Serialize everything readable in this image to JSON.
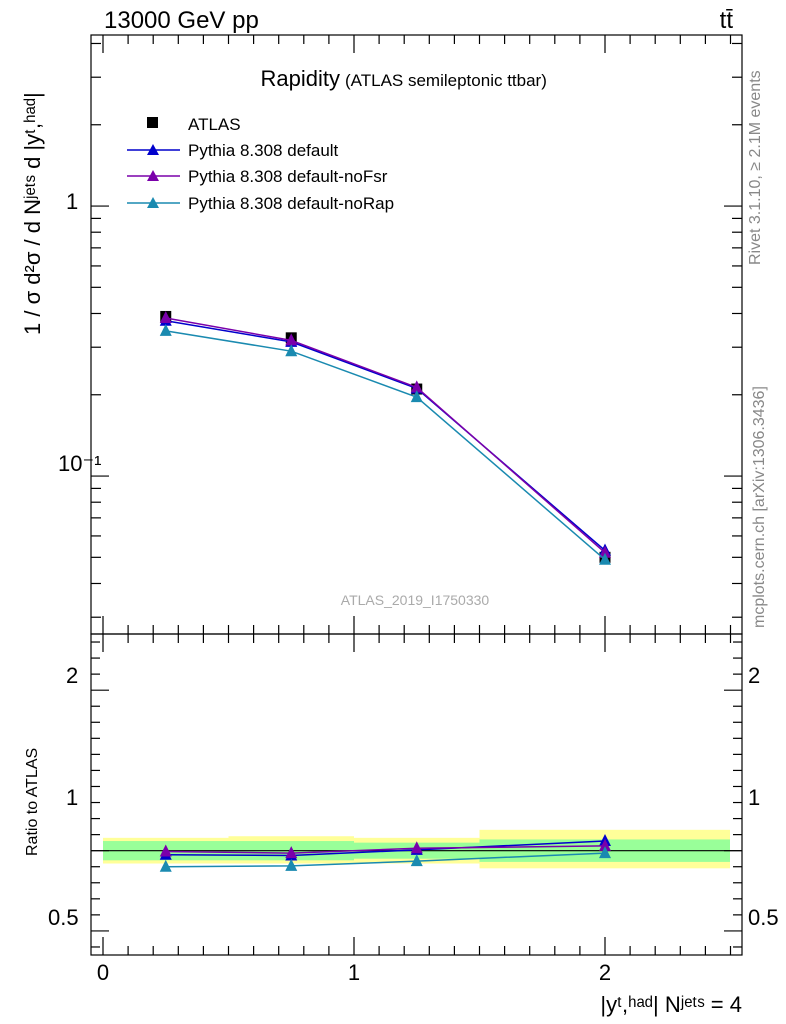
{
  "header": {
    "energy_label": "13000 GeV pp",
    "process_label": "tt̄"
  },
  "side_labels": {
    "rivet": "Rivet 3.1.10, ≥ 2.1M events",
    "mcplots": "mcplots.cern.ch [arXiv:1306.3436]"
  },
  "chart_data": [
    {
      "type": "line",
      "panel": "main",
      "title": "Rapidity",
      "subtitle": "(ATLAS semileptonic ttbar)",
      "watermark": "ATLAS_2019_I1750330",
      "ylabel": "1 / σ d²σ / d Nʲᵉᵗˢ d |yᵗ,ʰᵃᵈ|",
      "yscale": "log",
      "ylim": [
        0.026,
        4.3
      ],
      "xlim": [
        -0.05,
        2.55
      ],
      "ytick_labels": [
        "10⁻¹",
        "1"
      ],
      "legend_position": "top-left",
      "x": [
        0.25,
        0.75,
        1.25,
        2.0
      ],
      "series": [
        {
          "name": "ATLAS",
          "marker": "square",
          "color": "#000000",
          "values": [
            0.39,
            0.325,
            0.21,
            0.05
          ]
        },
        {
          "name": "Pythia 8.308 default",
          "marker": "triangle",
          "color": "#0000cc",
          "values": [
            0.376,
            0.314,
            0.211,
            0.053
          ]
        },
        {
          "name": "Pythia 8.308 default-noFsr",
          "marker": "triangle",
          "color": "#7a00aa",
          "values": [
            0.385,
            0.318,
            0.213,
            0.052
          ]
        },
        {
          "name": "Pythia 8.308 default-noRap",
          "marker": "triangle",
          "color": "#1a8ab0",
          "values": [
            0.345,
            0.29,
            0.196,
            0.049
          ]
        }
      ]
    },
    {
      "type": "line",
      "panel": "ratio",
      "ylabel": "Ratio to ATLAS",
      "xlabel": "|yᵗ,ʰᵃᵈ| Nʲᵉᵗˢ = 4",
      "ylim": [
        0.35,
        2.35
      ],
      "xlim": [
        -0.05,
        2.55
      ],
      "ytick_labels": [
        "0.5",
        "1",
        "2"
      ],
      "xtick_labels": [
        "0",
        "1",
        "2"
      ],
      "bins": [
        [
          0,
          0.5
        ],
        [
          0.5,
          1.0
        ],
        [
          1.0,
          1.5
        ],
        [
          1.5,
          2.5
        ]
      ],
      "band_inner": [
        [
          0.94,
          1.06
        ],
        [
          0.94,
          1.06
        ],
        [
          0.95,
          1.05
        ],
        [
          0.93,
          1.07
        ]
      ],
      "band_outer": [
        [
          0.92,
          1.08
        ],
        [
          0.92,
          1.09
        ],
        [
          0.92,
          1.08
        ],
        [
          0.89,
          1.13
        ]
      ],
      "x": [
        0.25,
        0.75,
        1.25,
        2.0
      ],
      "series": [
        {
          "name": "Pythia 8.308 default",
          "color": "#0000cc",
          "values": [
            0.975,
            0.97,
            1.005,
            1.06
          ]
        },
        {
          "name": "Pythia 8.308 default-noFsr",
          "color": "#7a00aa",
          "values": [
            0.995,
            0.985,
            1.015,
            1.03
          ]
        },
        {
          "name": "Pythia 8.308 default-noRap",
          "color": "#1a8ab0",
          "values": [
            0.9,
            0.905,
            0.935,
            0.985
          ]
        }
      ]
    }
  ]
}
